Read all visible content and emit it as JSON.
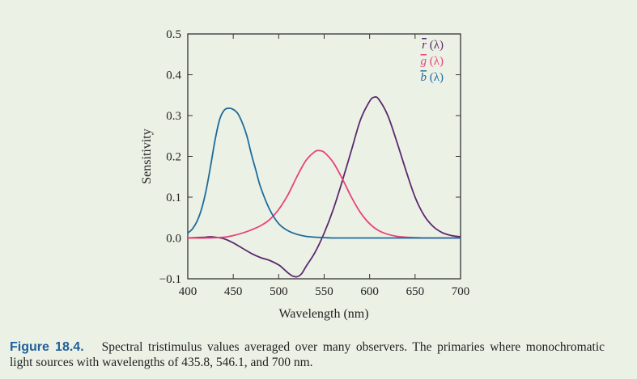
{
  "chart_data": {
    "type": "line",
    "xlabel": "Wavelength (nm)",
    "ylabel": "Sensitivity",
    "xlim": [
      400,
      700
    ],
    "ylim": [
      -0.1,
      0.5
    ],
    "xticks": [
      400,
      450,
      500,
      550,
      600,
      650,
      700
    ],
    "xtick_labels": [
      "400",
      "450",
      "500",
      "550",
      "600",
      "650",
      "700"
    ],
    "yticks": [
      -0.1,
      0.0,
      0.1,
      0.2,
      0.3,
      0.4,
      0.5
    ],
    "ytick_labels": [
      "−0.1",
      "0.0",
      "0.1",
      "0.2",
      "0.3",
      "0.4",
      "0.5"
    ],
    "grid": false,
    "legend_position": "top-right",
    "series": [
      {
        "name": "r",
        "label_base": "r",
        "label_suffix": " (λ)",
        "color": "#5b2a6e",
        "x": [
          400,
          410,
          420,
          425,
          430,
          440,
          450,
          460,
          470,
          480,
          490,
          500,
          505,
          510,
          515,
          520,
          525,
          530,
          540,
          550,
          560,
          570,
          580,
          590,
          600,
          605,
          610,
          620,
          630,
          640,
          650,
          660,
          670,
          680,
          690,
          700
        ],
        "y": [
          0.0,
          0.001,
          0.002,
          0.003,
          0.002,
          -0.002,
          -0.012,
          -0.025,
          -0.038,
          -0.048,
          -0.055,
          -0.066,
          -0.075,
          -0.085,
          -0.093,
          -0.095,
          -0.088,
          -0.07,
          -0.035,
          0.012,
          0.07,
          0.14,
          0.215,
          0.29,
          0.335,
          0.345,
          0.34,
          0.3,
          0.235,
          0.165,
          0.1,
          0.055,
          0.028,
          0.013,
          0.006,
          0.003
        ]
      },
      {
        "name": "g",
        "label_base": "g",
        "label_suffix": " (λ)",
        "color": "#e8437a",
        "x": [
          400,
          420,
          440,
          450,
          460,
          470,
          480,
          490,
          500,
          510,
          520,
          530,
          540,
          545,
          550,
          560,
          570,
          580,
          590,
          600,
          610,
          620,
          630,
          640,
          650,
          660,
          680,
          700
        ],
        "y": [
          0.0,
          0.0,
          0.002,
          0.006,
          0.012,
          0.02,
          0.03,
          0.045,
          0.07,
          0.105,
          0.15,
          0.19,
          0.212,
          0.214,
          0.21,
          0.185,
          0.145,
          0.1,
          0.062,
          0.035,
          0.018,
          0.009,
          0.004,
          0.002,
          0.001,
          0.0,
          0.0,
          0.0
        ]
      },
      {
        "name": "b",
        "label_base": "b",
        "label_suffix": " (λ)",
        "color": "#1e6b9c",
        "x": [
          400,
          405,
          410,
          415,
          420,
          425,
          430,
          435,
          440,
          445,
          450,
          455,
          460,
          465,
          470,
          475,
          480,
          490,
          500,
          510,
          520,
          530,
          540,
          550,
          560,
          580,
          600,
          650,
          700
        ],
        "y": [
          0.012,
          0.022,
          0.04,
          0.07,
          0.115,
          0.175,
          0.24,
          0.29,
          0.313,
          0.318,
          0.315,
          0.305,
          0.282,
          0.25,
          0.205,
          0.165,
          0.125,
          0.07,
          0.035,
          0.018,
          0.009,
          0.004,
          0.002,
          0.001,
          0.0,
          0.0,
          0.0,
          0.0,
          0.0
        ]
      }
    ]
  },
  "caption": {
    "label": "Figure 18.4.",
    "text": "Spectral tristimulus values averaged over many observers. The primaries where monochromatic light sources with wavelengths of 435.8, 546.1, and 700 nm."
  }
}
